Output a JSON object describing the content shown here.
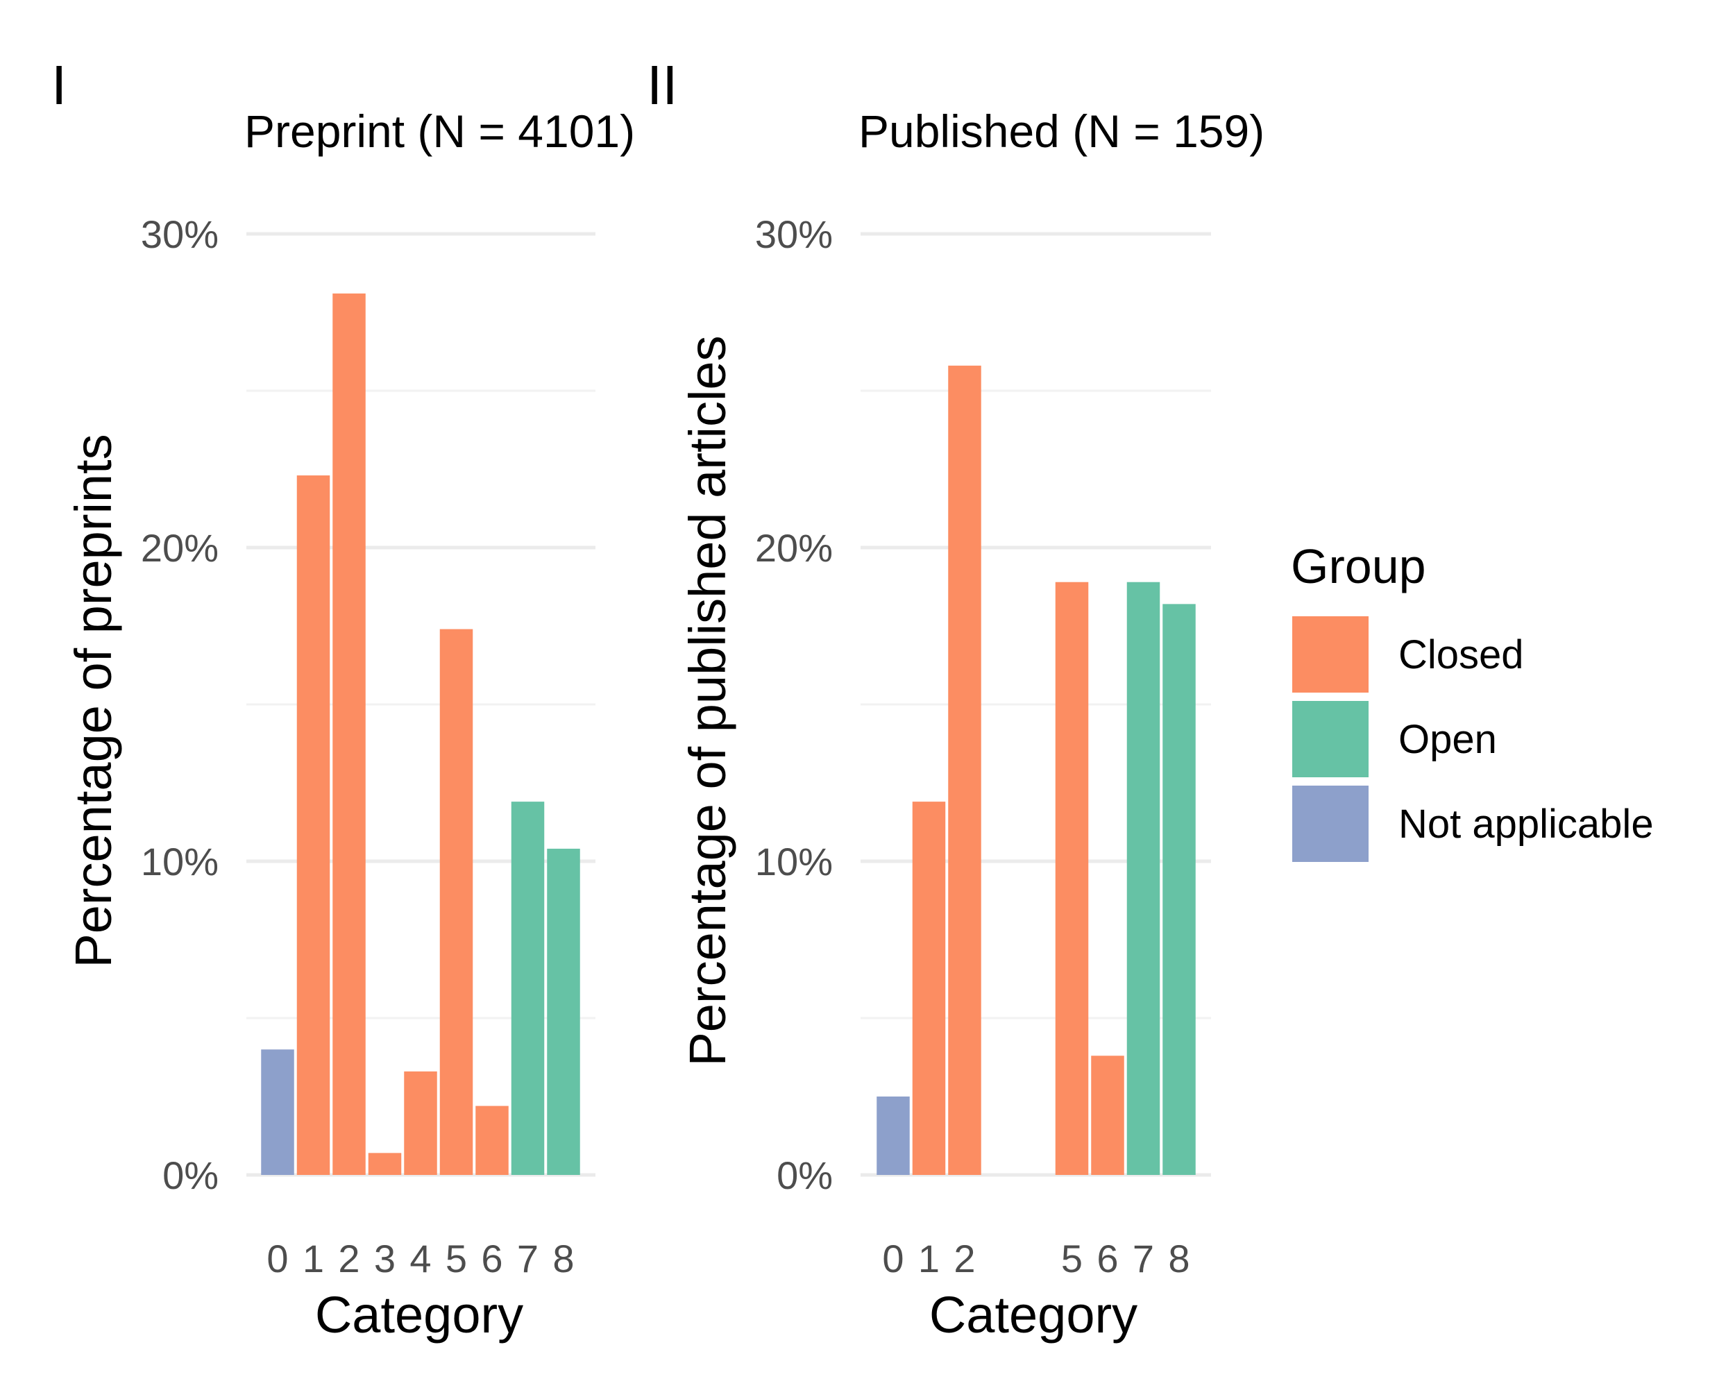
{
  "chart_data": [
    {
      "type": "bar",
      "panel_label": "I",
      "title": "Preprint (N = 4101)",
      "xlabel": "Category",
      "ylabel": "Percentage of preprints",
      "categories": [
        "0",
        "1",
        "2",
        "3",
        "4",
        "5",
        "6",
        "7",
        "8"
      ],
      "values": [
        4.0,
        22.3,
        28.1,
        0.7,
        3.3,
        17.4,
        2.2,
        11.9,
        10.4
      ],
      "groups": [
        "Not applicable",
        "Closed",
        "Closed",
        "Closed",
        "Closed",
        "Closed",
        "Closed",
        "Open",
        "Open"
      ],
      "ylim": [
        0,
        30
      ],
      "yticks": [
        0,
        10,
        20,
        30
      ],
      "ytick_labels": [
        "0%",
        "10%",
        "20%",
        "30%"
      ],
      "grid": true
    },
    {
      "type": "bar",
      "panel_label": "II",
      "title": "Published (N = 159)",
      "xlabel": "Category",
      "ylabel": "Percentage of published articles",
      "categories": [
        "0",
        "1",
        "2",
        "5",
        "6",
        "7",
        "8"
      ],
      "x_positions": [
        0,
        1,
        2,
        5,
        6,
        7,
        8
      ],
      "values": [
        2.5,
        11.9,
        25.8,
        18.9,
        3.8,
        18.9,
        18.2
      ],
      "groups": [
        "Not applicable",
        "Closed",
        "Closed",
        "Closed",
        "Closed",
        "Open",
        "Open"
      ],
      "ylim": [
        0,
        30
      ],
      "yticks": [
        0,
        10,
        20,
        30
      ],
      "ytick_labels": [
        "0%",
        "10%",
        "20%",
        "30%"
      ],
      "grid": true
    }
  ],
  "legend": {
    "title": "Group",
    "placement": "right",
    "items": [
      {
        "label": "Closed",
        "color": "#FC8D62"
      },
      {
        "label": "Open",
        "color": "#66C2A5"
      },
      {
        "label": "Not applicable",
        "color": "#8DA0CB"
      }
    ]
  }
}
